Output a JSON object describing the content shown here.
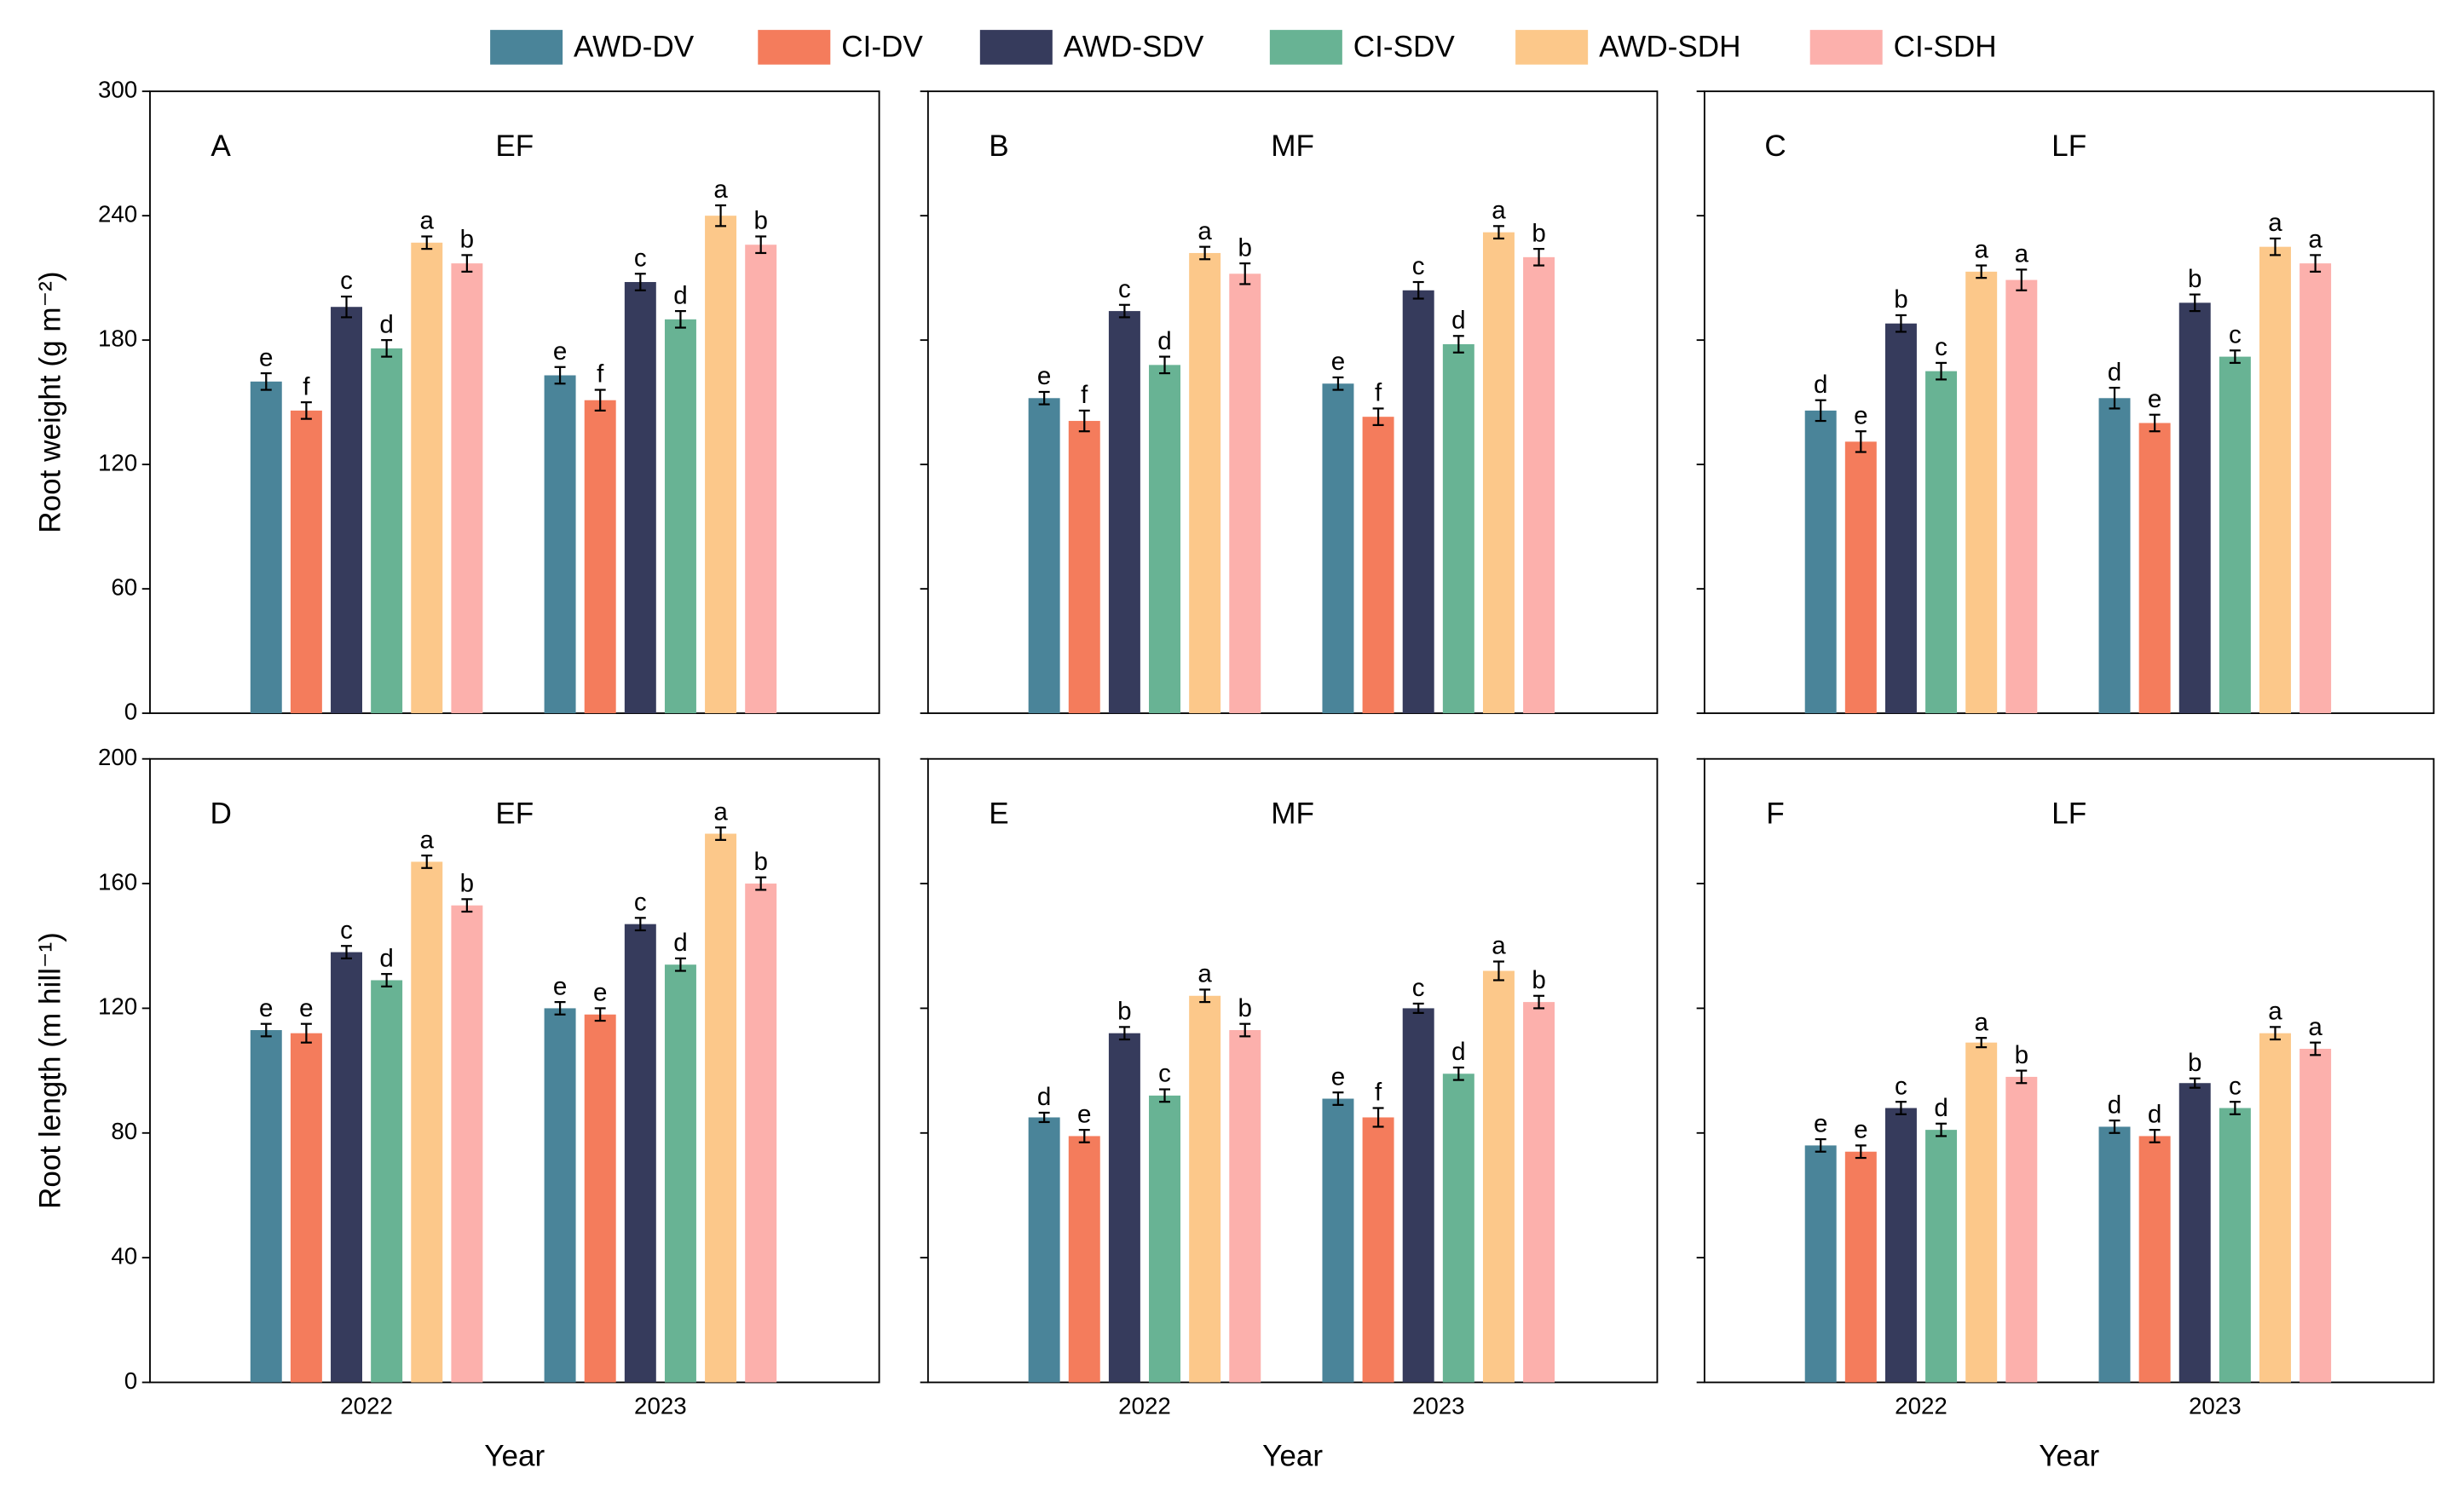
{
  "chart_data": [
    {
      "type": "bar",
      "panel_label": "A",
      "title": "EF",
      "ylabel": "Root weight (g m⁻²)",
      "categories": [
        null,
        null
      ],
      "ylim": [
        0,
        300
      ],
      "yticks": [
        0,
        60,
        120,
        180,
        240,
        300
      ],
      "show_ytick_labels": true,
      "series": [
        {
          "name": "AWD-DV",
          "color": "#4a8499",
          "values": [
            160,
            163
          ],
          "errors": [
            4,
            4
          ],
          "letters": [
            "e",
            "e"
          ]
        },
        {
          "name": "CI-DV",
          "color": "#f47c5c",
          "values": [
            146,
            151
          ],
          "errors": [
            4,
            5
          ],
          "letters": [
            "f",
            "f"
          ]
        },
        {
          "name": "AWD-SDV",
          "color": "#363b5c",
          "values": [
            196,
            208
          ],
          "errors": [
            5,
            4
          ],
          "letters": [
            "c",
            "c"
          ]
        },
        {
          "name": "CI-SDV",
          "color": "#68b394",
          "values": [
            176,
            190
          ],
          "errors": [
            4,
            4
          ],
          "letters": [
            "d",
            "d"
          ]
        },
        {
          "name": "AWD-SDH",
          "color": "#fcc88a",
          "values": [
            227,
            240
          ],
          "errors": [
            3,
            5
          ],
          "letters": [
            "a",
            "a"
          ]
        },
        {
          "name": "CI-SDH",
          "color": "#fcb0ac",
          "values": [
            217,
            226
          ],
          "errors": [
            4,
            4
          ],
          "letters": [
            "b",
            "b"
          ]
        }
      ]
    },
    {
      "type": "bar",
      "panel_label": "B",
      "title": "MF",
      "categories": [
        null,
        null
      ],
      "ylim": [
        0,
        300
      ],
      "yticks": [
        0,
        60,
        120,
        180,
        240,
        300
      ],
      "show_ytick_labels": false,
      "series": [
        {
          "name": "AWD-DV",
          "color": "#4a8499",
          "values": [
            152,
            159
          ],
          "errors": [
            3,
            3
          ],
          "letters": [
            "e",
            "e"
          ]
        },
        {
          "name": "CI-DV",
          "color": "#f47c5c",
          "values": [
            141,
            143
          ],
          "errors": [
            5,
            4
          ],
          "letters": [
            "f",
            "f"
          ]
        },
        {
          "name": "AWD-SDV",
          "color": "#363b5c",
          "values": [
            194,
            204
          ],
          "errors": [
            3,
            4
          ],
          "letters": [
            "c",
            "c"
          ]
        },
        {
          "name": "CI-SDV",
          "color": "#68b394",
          "values": [
            168,
            178
          ],
          "errors": [
            4,
            4
          ],
          "letters": [
            "d",
            "d"
          ]
        },
        {
          "name": "AWD-SDH",
          "color": "#fcc88a",
          "values": [
            222,
            232
          ],
          "errors": [
            3,
            3
          ],
          "letters": [
            "a",
            "a"
          ]
        },
        {
          "name": "CI-SDH",
          "color": "#fcb0ac",
          "values": [
            212,
            220
          ],
          "errors": [
            5,
            4
          ],
          "letters": [
            "b",
            "b"
          ]
        }
      ]
    },
    {
      "type": "bar",
      "panel_label": "C",
      "title": "LF",
      "categories": [
        null,
        null
      ],
      "ylim": [
        0,
        300
      ],
      "yticks": [
        0,
        60,
        120,
        180,
        240,
        300
      ],
      "show_ytick_labels": false,
      "series": [
        {
          "name": "AWD-DV",
          "color": "#4a8499",
          "values": [
            146,
            152
          ],
          "errors": [
            5,
            5
          ],
          "letters": [
            "d",
            "d"
          ]
        },
        {
          "name": "CI-DV",
          "color": "#f47c5c",
          "values": [
            131,
            140
          ],
          "errors": [
            5,
            4
          ],
          "letters": [
            "e",
            "e"
          ]
        },
        {
          "name": "AWD-SDV",
          "color": "#363b5c",
          "values": [
            188,
            198
          ],
          "errors": [
            4,
            4
          ],
          "letters": [
            "b",
            "b"
          ]
        },
        {
          "name": "CI-SDV",
          "color": "#68b394",
          "values": [
            165,
            172
          ],
          "errors": [
            4,
            3
          ],
          "letters": [
            "c",
            "c"
          ]
        },
        {
          "name": "AWD-SDH",
          "color": "#fcc88a",
          "values": [
            213,
            225
          ],
          "errors": [
            3,
            4
          ],
          "letters": [
            "a",
            "a"
          ]
        },
        {
          "name": "CI-SDH",
          "color": "#fcb0ac",
          "values": [
            209,
            217
          ],
          "errors": [
            5,
            4
          ],
          "letters": [
            "a",
            "a"
          ]
        }
      ]
    },
    {
      "type": "bar",
      "panel_label": "D",
      "title": "EF",
      "ylabel": "Root length (m hill⁻¹)",
      "xlabel": "Year",
      "categories": [
        "2022",
        "2023"
      ],
      "ylim": [
        0,
        200
      ],
      "yticks": [
        0,
        40,
        80,
        120,
        160,
        200
      ],
      "show_ytick_labels": true,
      "series": [
        {
          "name": "AWD-DV",
          "color": "#4a8499",
          "values": [
            113,
            120
          ],
          "errors": [
            2,
            2
          ],
          "letters": [
            "e",
            "e"
          ]
        },
        {
          "name": "CI-DV",
          "color": "#f47c5c",
          "values": [
            112,
            118
          ],
          "errors": [
            3,
            2
          ],
          "letters": [
            "e",
            "e"
          ]
        },
        {
          "name": "AWD-SDV",
          "color": "#363b5c",
          "values": [
            138,
            147
          ],
          "errors": [
            2,
            2
          ],
          "letters": [
            "c",
            "c"
          ]
        },
        {
          "name": "CI-SDV",
          "color": "#68b394",
          "values": [
            129,
            134
          ],
          "errors": [
            2,
            2
          ],
          "letters": [
            "d",
            "d"
          ]
        },
        {
          "name": "AWD-SDH",
          "color": "#fcc88a",
          "values": [
            167,
            176
          ],
          "errors": [
            2,
            2
          ],
          "letters": [
            "a",
            "a"
          ]
        },
        {
          "name": "CI-SDH",
          "color": "#fcb0ac",
          "values": [
            153,
            160
          ],
          "errors": [
            2,
            2
          ],
          "letters": [
            "b",
            "b"
          ]
        }
      ]
    },
    {
      "type": "bar",
      "panel_label": "E",
      "title": "MF",
      "xlabel": "Year",
      "categories": [
        "2022",
        "2023"
      ],
      "ylim": [
        0,
        200
      ],
      "yticks": [
        0,
        40,
        80,
        120,
        160,
        200
      ],
      "show_ytick_labels": false,
      "series": [
        {
          "name": "AWD-DV",
          "color": "#4a8499",
          "values": [
            85,
            91
          ],
          "errors": [
            1.5,
            2
          ],
          "letters": [
            "d",
            "e"
          ]
        },
        {
          "name": "CI-DV",
          "color": "#f47c5c",
          "values": [
            79,
            85
          ],
          "errors": [
            2,
            3
          ],
          "letters": [
            "e",
            "f"
          ]
        },
        {
          "name": "AWD-SDV",
          "color": "#363b5c",
          "values": [
            112,
            120
          ],
          "errors": [
            2,
            1.5
          ],
          "letters": [
            "b",
            "c"
          ]
        },
        {
          "name": "CI-SDV",
          "color": "#68b394",
          "values": [
            92,
            99
          ],
          "errors": [
            2,
            2
          ],
          "letters": [
            "c",
            "d"
          ]
        },
        {
          "name": "AWD-SDH",
          "color": "#fcc88a",
          "values": [
            124,
            132
          ],
          "errors": [
            2,
            3
          ],
          "letters": [
            "a",
            "a"
          ]
        },
        {
          "name": "CI-SDH",
          "color": "#fcb0ac",
          "values": [
            113,
            122
          ],
          "errors": [
            2,
            2
          ],
          "letters": [
            "b",
            "b"
          ]
        }
      ]
    },
    {
      "type": "bar",
      "panel_label": "F",
      "title": "LF",
      "xlabel": "Year",
      "categories": [
        "2022",
        "2023"
      ],
      "ylim": [
        0,
        200
      ],
      "yticks": [
        0,
        40,
        80,
        120,
        160,
        200
      ],
      "show_ytick_labels": false,
      "series": [
        {
          "name": "AWD-DV",
          "color": "#4a8499",
          "values": [
            76,
            82
          ],
          "errors": [
            2,
            2
          ],
          "letters": [
            "e",
            "d"
          ]
        },
        {
          "name": "CI-DV",
          "color": "#f47c5c",
          "values": [
            74,
            79
          ],
          "errors": [
            2,
            2
          ],
          "letters": [
            "e",
            "d"
          ]
        },
        {
          "name": "AWD-SDV",
          "color": "#363b5c",
          "values": [
            88,
            96
          ],
          "errors": [
            2,
            1.5
          ],
          "letters": [
            "c",
            "b"
          ]
        },
        {
          "name": "CI-SDV",
          "color": "#68b394",
          "values": [
            81,
            88
          ],
          "errors": [
            2,
            2
          ],
          "letters": [
            "d",
            "c"
          ]
        },
        {
          "name": "AWD-SDH",
          "color": "#fcc88a",
          "values": [
            109,
            112
          ],
          "errors": [
            1.5,
            2
          ],
          "letters": [
            "a",
            "a"
          ]
        },
        {
          "name": "CI-SDH",
          "color": "#fcb0ac",
          "values": [
            98,
            107
          ],
          "errors": [
            2,
            2
          ],
          "letters": [
            "b",
            "a"
          ]
        }
      ]
    }
  ]
}
